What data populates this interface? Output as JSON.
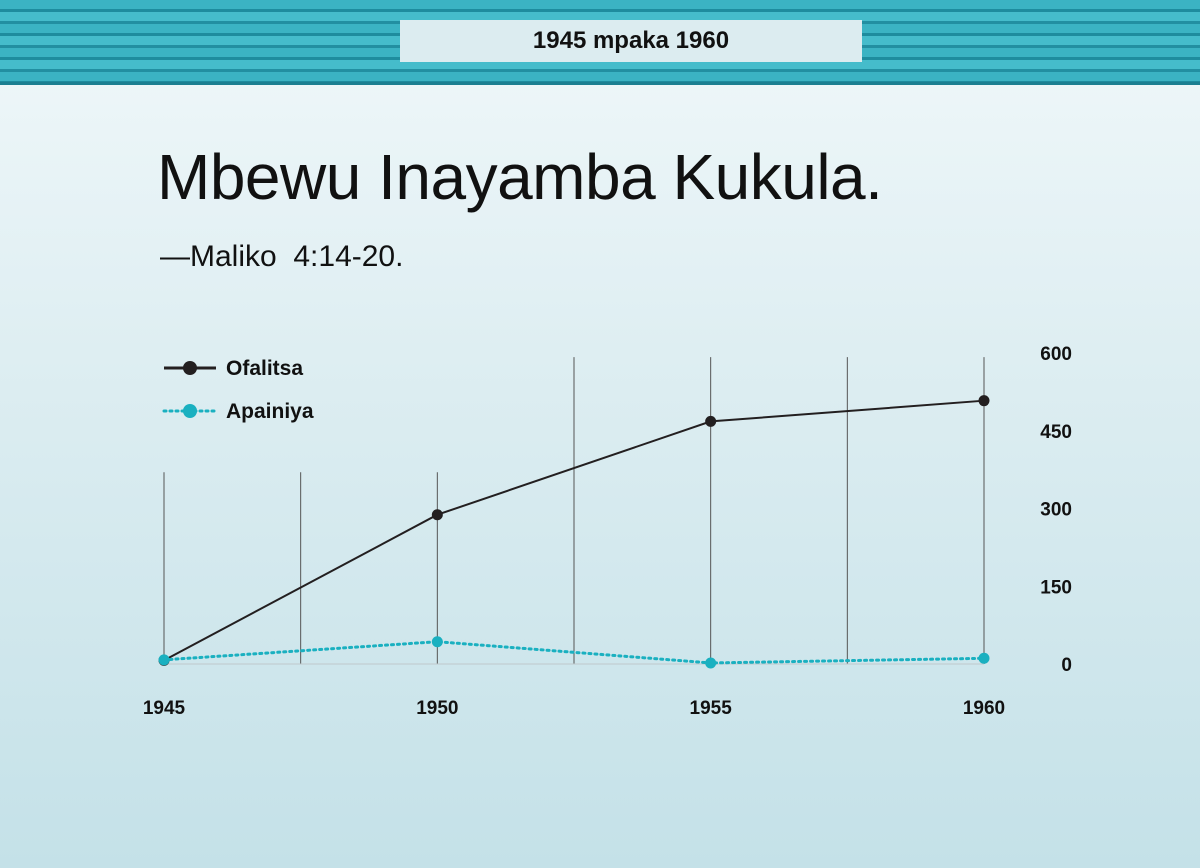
{
  "header": {
    "banner_text": "1945 mpaka 1960"
  },
  "heading": {
    "title": "Mbewu Inayamba Kukula.",
    "scripture": "—Maliko  4:14-20."
  },
  "colors": {
    "ofalitsa": "#231f20",
    "apainiya": "#1ab0c0",
    "banner": "#3bb3c3"
  },
  "chart_data": {
    "type": "line",
    "x": [
      1945,
      1950,
      1955,
      1960
    ],
    "x_tick_labels": [
      "1945",
      "1950",
      "1955",
      "1960"
    ],
    "y_ticks": [
      0,
      150,
      300,
      450,
      600
    ],
    "ylim": [
      0,
      600
    ],
    "grid": "vertical",
    "legend_position": "top-left",
    "series": [
      {
        "name": "Ofalitsa",
        "values": [
          7,
          288,
          468,
          508
        ],
        "style": "solid"
      },
      {
        "name": "Apainiya",
        "values": [
          8,
          43,
          2,
          11
        ],
        "style": "dotted"
      }
    ]
  }
}
